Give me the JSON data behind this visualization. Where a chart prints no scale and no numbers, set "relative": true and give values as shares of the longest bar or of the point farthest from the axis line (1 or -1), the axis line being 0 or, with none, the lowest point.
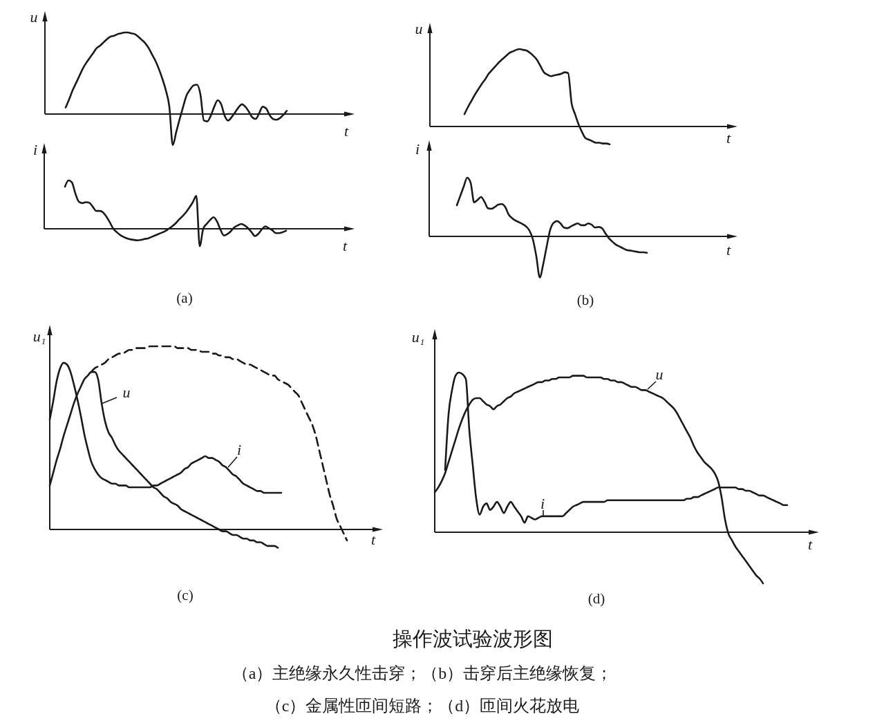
{
  "chart_data": [
    {
      "type": "line",
      "relative": true,
      "xlabel": "t",
      "ylabel": "u",
      "categories": [
        null,
        null,
        null,
        null,
        null,
        null,
        null,
        null,
        null,
        null,
        null,
        null,
        null,
        null,
        null,
        null,
        null,
        null,
        null,
        null,
        null,
        null,
        null,
        null,
        null,
        null,
        null,
        null,
        null,
        null,
        null,
        null,
        null,
        null,
        null,
        null,
        null,
        null,
        null,
        null,
        null,
        null,
        null,
        null,
        null,
        null,
        null,
        null,
        null,
        null,
        null,
        null,
        null,
        null,
        null,
        null,
        null,
        null,
        null,
        null,
        null,
        null,
        null,
        null,
        null,
        null,
        null,
        null,
        null,
        null,
        null
      ],
      "series": [
        {
          "color": "#1a1a1a",
          "values": [
            null,
            null,
            null,
            null,
            null,
            null,
            0.08,
            0.18,
            0.29,
            0.38,
            0.47,
            0.56,
            0.63,
            0.69,
            0.75,
            0.81,
            0.84,
            0.88,
            0.92,
            0.95,
            0.96,
            0.98,
            0.99,
            1.0,
            1.0,
            0.99,
            0.98,
            0.95,
            0.91,
            0.87,
            0.81,
            0.73,
            0.65,
            0.55,
            0.43,
            0.29,
            0.09,
            -0.38,
            -0.22,
            -0.06,
            0.09,
            0.23,
            0.3,
            0.35,
            0.36,
            0.24,
            -0.08,
            -0.09,
            -0.02,
            0.09,
            0.17,
            0.12,
            -0.02,
            -0.08,
            -0.04,
            0.02,
            0.08,
            0.12,
            0.09,
            0.03,
            -0.04,
            -0.06,
            0.01,
            0.09,
            0.07,
            -0.01,
            -0.06,
            -0.07,
            -0.05,
            -0.01,
            0.04
          ]
        }
      ]
    },
    {
      "type": "line",
      "relative": true,
      "xlabel": "t",
      "ylabel": "i",
      "annotations": [
        "(a)"
      ],
      "categories": [
        null,
        null,
        null,
        null,
        null,
        null,
        null,
        null,
        null,
        null,
        null,
        null,
        null,
        null,
        null,
        null,
        null,
        null,
        null,
        null,
        null,
        null,
        null,
        null,
        null,
        null,
        null,
        null,
        null,
        null,
        null,
        null,
        null,
        null,
        null,
        null,
        null,
        null,
        null,
        null,
        null,
        null,
        null,
        null,
        null,
        null,
        null,
        null,
        null,
        null,
        null,
        null,
        null,
        null,
        null,
        null,
        null,
        null,
        null,
        null,
        null,
        null,
        null,
        null,
        null,
        null,
        null,
        null,
        null,
        null,
        null
      ],
      "series": [
        {
          "color": "#1a1a1a",
          "values": [
            null,
            null,
            null,
            null,
            null,
            null,
            0.87,
            1.0,
            0.96,
            0.73,
            0.56,
            0.53,
            0.55,
            0.54,
            0.46,
            0.37,
            0.37,
            0.34,
            0.25,
            0.13,
            0.0,
            -0.07,
            -0.13,
            -0.17,
            -0.2,
            -0.22,
            -0.23,
            -0.24,
            -0.23,
            -0.21,
            -0.2,
            -0.17,
            -0.14,
            -0.11,
            -0.08,
            -0.05,
            0.0,
            0.05,
            0.11,
            0.19,
            0.26,
            0.34,
            0.44,
            0.55,
            0.68,
            -0.36,
            0.0,
            0.1,
            0.18,
            0.24,
            0.15,
            -0.02,
            -0.14,
            -0.11,
            -0.05,
            0.03,
            0.07,
            0.1,
            0.07,
            0.01,
            -0.07,
            -0.15,
            -0.1,
            -0.01,
            0.05,
            0.01,
            -0.03,
            -0.09,
            -0.09,
            -0.07,
            -0.04
          ]
        }
      ]
    },
    {
      "type": "line",
      "relative": true,
      "xlabel": "t",
      "ylabel": "u",
      "categories": [
        null,
        null,
        null,
        null,
        null,
        null,
        null,
        null,
        null,
        null,
        null,
        null,
        null,
        null,
        null,
        null,
        null,
        null,
        null,
        null,
        null,
        null,
        null,
        null,
        null,
        null,
        null,
        null,
        null,
        null,
        null,
        null,
        null,
        null,
        null,
        null,
        null,
        null,
        null,
        null,
        null,
        null,
        null,
        null,
        null,
        null,
        null,
        null,
        null,
        null,
        null,
        null,
        null,
        null,
        null,
        null,
        null,
        null,
        null,
        null,
        null,
        null,
        null,
        null,
        null,
        null,
        null,
        null,
        null,
        null,
        null,
        null,
        null,
        null,
        null,
        null,
        null,
        null,
        null,
        null,
        null,
        null,
        null,
        null,
        null,
        null,
        null
      ],
      "series": [
        {
          "color": "#1a1a1a",
          "values": [
            null,
            null,
            null,
            null,
            null,
            null,
            null,
            null,
            null,
            null,
            0.16,
            0.25,
            0.33,
            0.41,
            0.48,
            0.55,
            0.61,
            0.68,
            0.73,
            0.78,
            0.83,
            0.87,
            0.91,
            0.95,
            0.97,
            0.99,
            1.0,
            0.99,
            0.98,
            0.95,
            0.91,
            0.86,
            0.78,
            0.7,
            0.67,
            0.65,
            0.66,
            0.67,
            0.68,
            0.7,
            0.69,
            0.3,
            0.16,
            0.03,
            -0.07,
            -0.15,
            -0.17,
            -0.19,
            -0.21,
            -0.21,
            -0.22,
            -0.22,
            -0.23,
            null,
            null,
            null,
            null,
            null,
            null,
            null,
            null,
            null,
            null,
            null,
            null,
            null,
            null,
            null,
            null,
            null,
            null,
            null,
            null,
            null,
            null,
            null,
            null,
            null,
            null,
            null,
            null,
            null,
            null,
            null,
            null,
            null,
            null
          ]
        }
      ]
    },
    {
      "type": "line",
      "relative": true,
      "xlabel": "t",
      "ylabel": "i",
      "annotations": [
        "(b)"
      ],
      "categories": [
        null,
        null,
        null,
        null,
        null,
        null,
        null,
        null,
        null,
        null,
        null,
        null,
        null,
        null,
        null,
        null,
        null,
        null,
        null,
        null,
        null,
        null,
        null,
        null,
        null,
        null,
        null,
        null,
        null,
        null,
        null,
        null,
        null,
        null,
        null,
        null,
        null,
        null,
        null,
        null,
        null,
        null,
        null,
        null,
        null,
        null,
        null,
        null,
        null,
        null,
        null,
        null,
        null,
        null,
        null,
        null,
        null,
        null,
        null,
        null,
        null,
        null,
        null,
        null
      ],
      "series": [
        {
          "color": "#1a1a1a",
          "values": [
            null,
            null,
            null,
            null,
            null,
            null,
            null,
            null,
            0.53,
            0.69,
            0.85,
            1.0,
            0.91,
            0.58,
            0.62,
            0.67,
            0.59,
            0.48,
            0.47,
            0.5,
            0.54,
            0.55,
            0.5,
            0.37,
            0.31,
            0.27,
            0.24,
            0.21,
            0.17,
            0.1,
            -0.05,
            -0.34,
            -0.7,
            -0.47,
            -0.17,
            0.11,
            0.23,
            0.26,
            0.22,
            0.15,
            0.14,
            0.17,
            0.2,
            0.22,
            0.19,
            0.19,
            0.22,
            0.2,
            0.15,
            0.16,
            0.14,
            0.05,
            -0.03,
            -0.09,
            -0.14,
            -0.17,
            -0.2,
            -0.23,
            -0.24,
            -0.25,
            -0.26,
            -0.27,
            -0.27,
            -0.28
          ]
        }
      ]
    },
    {
      "type": "line",
      "relative": true,
      "xlabel": "t",
      "ylabel": "u₁",
      "annotations": [
        "(c)"
      ],
      "categories": [
        null,
        null,
        null,
        null,
        null,
        null,
        null,
        null,
        null,
        null,
        null,
        null,
        null,
        null,
        null,
        null,
        null,
        null,
        null,
        null,
        null,
        null,
        null,
        null,
        null,
        null,
        null,
        null,
        null,
        null,
        null,
        null,
        null,
        null,
        null,
        null,
        null,
        null,
        null,
        null,
        null,
        null,
        null,
        null,
        null,
        null,
        null,
        null,
        null,
        null,
        null,
        null,
        null,
        null,
        null,
        null,
        null,
        null,
        null,
        null,
        null,
        null,
        null,
        null,
        null,
        null,
        null,
        null,
        null,
        null,
        null,
        null,
        null,
        null,
        null,
        null,
        null,
        null,
        null,
        null,
        null,
        null,
        null,
        null,
        null,
        null,
        null
      ],
      "series": [
        {
          "name": "u",
          "color": "#1a1a1a",
          "values": [
            0.24,
            0.31,
            0.38,
            0.44,
            0.51,
            0.57,
            0.63,
            0.69,
            0.74,
            0.78,
            0.82,
            0.84,
            0.86,
            0.86,
            0.82,
            0.69,
            0.59,
            0.53,
            0.5,
            0.46,
            0.43,
            0.41,
            0.39,
            0.37,
            0.35,
            0.33,
            0.31,
            0.29,
            0.27,
            0.25,
            0.23,
            0.22,
            0.2,
            0.18,
            0.17,
            0.15,
            0.14,
            0.13,
            0.11,
            0.1,
            0.09,
            0.08,
            0.07,
            0.06,
            0.05,
            0.04,
            0.03,
            0.02,
            0.01,
            0.0,
            -0.01,
            -0.01,
            -0.02,
            -0.03,
            -0.03,
            -0.04,
            -0.05,
            -0.05,
            -0.06,
            -0.06,
            -0.07,
            -0.07,
            -0.08,
            -0.09,
            -0.09,
            -0.09,
            -0.1,
            null,
            null,
            null,
            null,
            null,
            null,
            null,
            null,
            null,
            null,
            null,
            null,
            null,
            null,
            null,
            null,
            null,
            null,
            null,
            null
          ]
        },
        {
          "name": "i",
          "color": "#1a1a1a",
          "values": [
            0.6,
            0.7,
            0.81,
            0.88,
            0.91,
            0.9,
            0.86,
            0.79,
            0.71,
            0.62,
            0.52,
            0.44,
            0.37,
            0.33,
            0.3,
            0.28,
            0.27,
            0.26,
            0.25,
            0.25,
            0.24,
            0.24,
            0.24,
            0.23,
            0.23,
            0.23,
            0.23,
            0.23,
            0.23,
            0.23,
            0.24,
            0.24,
            0.25,
            0.26,
            0.27,
            0.28,
            0.29,
            0.3,
            0.31,
            0.33,
            0.34,
            0.36,
            0.37,
            0.38,
            0.39,
            0.4,
            0.39,
            0.39,
            0.38,
            0.37,
            0.35,
            0.34,
            0.32,
            0.3,
            0.29,
            0.27,
            0.25,
            0.24,
            0.23,
            0.22,
            0.21,
            0.21,
            0.2,
            0.2,
            0.2,
            0.2,
            0.2,
            0.2,
            null,
            null,
            null,
            null,
            null,
            null,
            null,
            null,
            null,
            null,
            null,
            null,
            null,
            null,
            null,
            null,
            null,
            null,
            null
          ]
        },
        {
          "color": "#1a1a1a",
          "line_style": "dashed",
          "values": [
            null,
            null,
            null,
            null,
            null,
            null,
            null,
            null,
            null,
            null,
            null,
            null,
            0.86,
            0.88,
            0.89,
            0.9,
            0.91,
            0.93,
            0.94,
            0.95,
            0.96,
            0.96,
            0.97,
            0.98,
            0.98,
            0.99,
            0.99,
            0.99,
            0.99,
            1.0,
            1.0,
            1.0,
            1.0,
            1.0,
            1.0,
            1.0,
            1.0,
            0.99,
            0.99,
            0.99,
            0.99,
            0.98,
            0.98,
            0.98,
            0.97,
            0.97,
            0.97,
            0.96,
            0.96,
            0.95,
            0.95,
            0.94,
            0.94,
            0.93,
            0.93,
            0.92,
            0.91,
            0.9,
            0.9,
            0.89,
            0.88,
            0.87,
            0.86,
            0.85,
            0.84,
            0.84,
            0.82,
            0.81,
            0.8,
            0.79,
            0.77,
            0.75,
            0.73,
            0.69,
            0.65,
            0.61,
            0.57,
            0.51,
            0.43,
            0.35,
            0.27,
            0.19,
            0.13,
            0.06,
            0.02,
            -0.02,
            -0.06
          ]
        }
      ]
    },
    {
      "type": "line",
      "relative": true,
      "xlabel": "t",
      "ylabel": "u₁",
      "annotations": [
        "(d)"
      ],
      "categories": [
        null,
        null,
        null,
        null,
        null,
        null,
        null,
        null,
        null,
        null,
        null,
        null,
        null,
        null,
        null,
        null,
        null,
        null,
        null,
        null,
        null,
        null,
        null,
        null,
        null,
        null,
        null,
        null,
        null,
        null,
        null,
        null,
        null,
        null,
        null,
        null,
        null,
        null,
        null,
        null,
        null,
        null,
        null,
        null,
        null,
        null,
        null,
        null,
        null,
        null,
        null,
        null,
        null,
        null,
        null,
        null,
        null,
        null,
        null,
        null,
        null,
        null,
        null,
        null,
        null,
        null,
        null,
        null,
        null,
        null,
        null,
        null,
        null,
        null,
        null,
        null,
        null,
        null,
        null,
        null,
        null,
        null,
        null,
        null,
        null,
        null,
        null,
        null,
        null,
        null,
        null,
        null,
        null,
        null,
        null,
        null,
        null,
        null,
        null,
        null,
        null,
        null,
        null
      ],
      "series": [
        {
          "name": "u",
          "color": "#1a1a1a",
          "values": [
            0.25,
            0.28,
            0.32,
            0.37,
            0.44,
            0.51,
            0.58,
            0.65,
            0.71,
            0.76,
            0.8,
            0.83,
            0.84,
            0.84,
            0.82,
            0.8,
            0.79,
            0.77,
            0.79,
            0.8,
            0.82,
            0.84,
            0.85,
            0.87,
            0.88,
            0.89,
            0.9,
            0.91,
            0.92,
            0.93,
            0.94,
            0.94,
            0.95,
            0.95,
            0.96,
            0.96,
            0.97,
            0.97,
            0.97,
            0.97,
            0.98,
            0.98,
            0.98,
            0.98,
            0.97,
            0.97,
            0.97,
            0.97,
            0.97,
            0.96,
            0.96,
            0.95,
            0.95,
            0.94,
            0.94,
            0.93,
            0.92,
            0.91,
            0.91,
            0.9,
            0.89,
            0.89,
            0.88,
            0.87,
            0.86,
            0.85,
            0.84,
            0.82,
            0.8,
            0.78,
            0.75,
            0.71,
            0.67,
            0.63,
            0.59,
            0.54,
            0.5,
            0.47,
            0.44,
            0.42,
            0.4,
            0.37,
            0.32,
            0.22,
            0.08,
            -0.01,
            -0.05,
            -0.09,
            -0.12,
            -0.15,
            -0.18,
            -0.21,
            -0.24,
            -0.27,
            -0.29,
            -0.32,
            null,
            null,
            null,
            null,
            null,
            null,
            null
          ]
        },
        {
          "name": "i",
          "color": "#1a1a1a",
          "values": [
            null,
            null,
            null,
            0.39,
            0.74,
            0.89,
            0.98,
            1.0,
            0.99,
            0.96,
            0.64,
            0.42,
            0.21,
            0.11,
            0.16,
            0.18,
            0.14,
            0.16,
            0.19,
            0.16,
            0.12,
            0.16,
            0.19,
            0.16,
            0.13,
            0.1,
            0.06,
            0.1,
            0.09,
            0.08,
            0.09,
            0.1,
            0.1,
            0.1,
            0.1,
            0.1,
            0.1,
            0.1,
            0.12,
            0.14,
            0.16,
            0.17,
            0.18,
            0.19,
            0.19,
            0.19,
            0.19,
            0.19,
            0.19,
            0.19,
            0.2,
            0.2,
            0.2,
            0.2,
            0.2,
            0.2,
            0.2,
            0.2,
            0.2,
            0.2,
            0.2,
            0.2,
            0.2,
            0.2,
            0.2,
            0.2,
            0.2,
            0.2,
            0.2,
            0.2,
            0.2,
            0.2,
            0.2,
            0.21,
            0.21,
            0.22,
            0.22,
            0.23,
            0.24,
            0.25,
            0.26,
            0.27,
            0.28,
            0.28,
            0.28,
            0.28,
            0.28,
            0.28,
            0.27,
            0.27,
            0.26,
            0.26,
            0.25,
            0.24,
            0.23,
            0.23,
            0.22,
            0.21,
            0.2,
            0.19,
            0.18,
            0.17,
            0.17
          ]
        }
      ]
    },
    {
      "type": "other",
      "title": "操作波试验波形图",
      "annotations": [
        "（a）主绝缘永久性击穿；（b）击穿后主绝缘恢复；",
        "（c）金属性匝间短路；（d）匝间火花放电"
      ]
    }
  ]
}
